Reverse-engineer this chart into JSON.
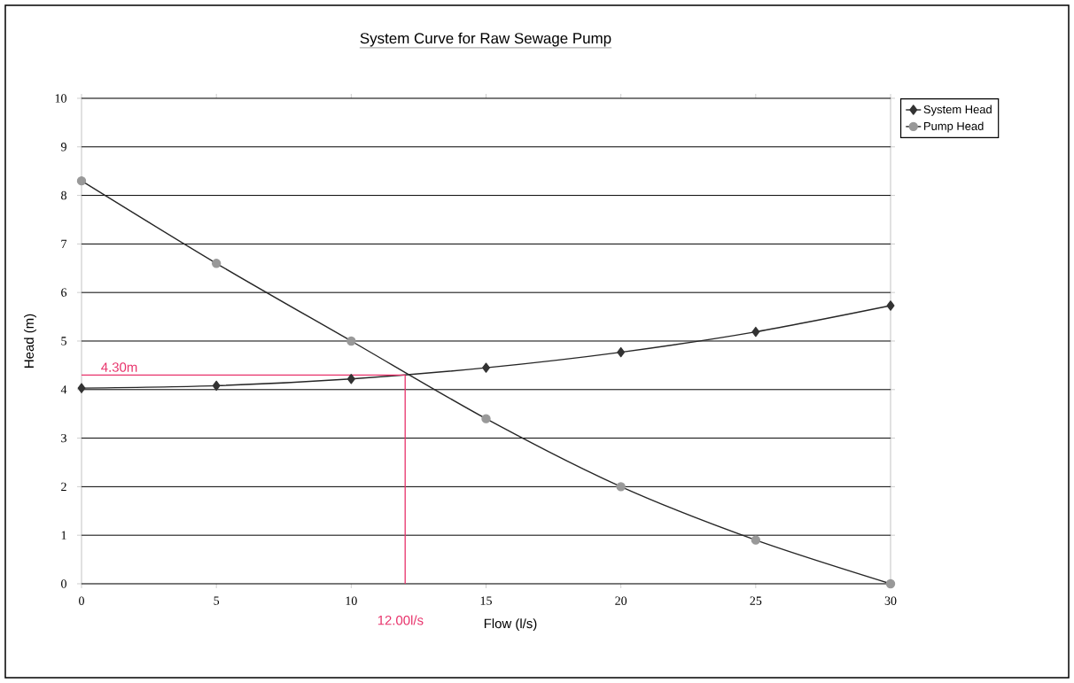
{
  "chart_data": {
    "type": "line",
    "title": "System Curve for Raw Sewage Pump",
    "xlabel": "Flow (l/s)",
    "ylabel": "Head (m)",
    "x": [
      0,
      5,
      10,
      15,
      20,
      25,
      30
    ],
    "series": [
      {
        "name": "System Head",
        "color": "#333333",
        "marker": "diamond",
        "values": [
          4.03,
          4.08,
          4.22,
          4.45,
          4.77,
          5.19,
          5.73
        ]
      },
      {
        "name": "Pump Head",
        "color": "#999999",
        "marker": "circle",
        "values": [
          8.3,
          6.6,
          5.0,
          3.4,
          2.0,
          0.9,
          0.0
        ]
      }
    ],
    "xlim": [
      0,
      30
    ],
    "xticks": [
      0,
      5,
      10,
      15,
      20,
      25,
      30
    ],
    "ylim": [
      0,
      10
    ],
    "yticks": [
      0,
      1,
      2,
      3,
      4,
      5,
      6,
      7,
      8,
      9,
      10
    ],
    "grid": "y",
    "legend": "top right",
    "line_style": "solid",
    "ref_lines": [
      {
        "axis": "y",
        "value": 4.3,
        "label": "4.30m",
        "color": "#e8336b"
      },
      {
        "axis": "x",
        "value": 12,
        "label": "12.00l/s",
        "color": "#e8336b"
      }
    ]
  }
}
